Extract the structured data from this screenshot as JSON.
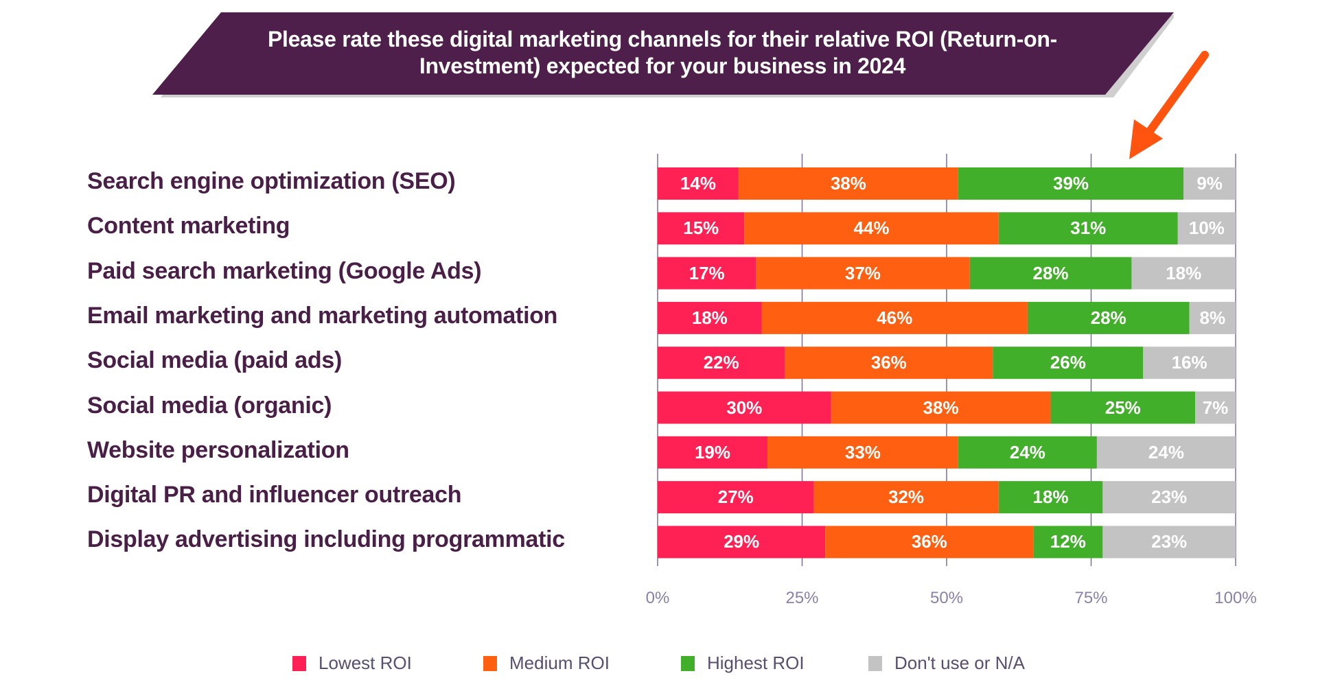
{
  "chart_data": {
    "type": "bar",
    "orientation": "horizontal",
    "stacked": true,
    "title": "Please rate these digital marketing channels for their relative ROI (Return-on-Investment) expected for your business in 2024",
    "title_lines": [
      "Please rate these digital marketing channels for their relative ROI (Return-on-",
      "Investment) expected for your business in 2024"
    ],
    "categories": [
      "Search engine optimization (SEO)",
      "Content marketing",
      "Paid search marketing (Google Ads)",
      "Email marketing and marketing automation",
      "Social media (paid ads)",
      "Social media (organic)",
      "Website personalization",
      "Digital PR and influencer outreach",
      "Display advertising including programmatic"
    ],
    "series": [
      {
        "name": "Lowest ROI",
        "color": "#ff2153",
        "values": [
          14,
          15,
          17,
          18,
          22,
          30,
          19,
          27,
          29
        ]
      },
      {
        "name": "Medium ROI",
        "color": "#ff5f10",
        "values": [
          38,
          44,
          37,
          46,
          36,
          38,
          33,
          32,
          36
        ]
      },
      {
        "name": "Highest ROI",
        "color": "#42af2b",
        "values": [
          39,
          31,
          28,
          28,
          26,
          25,
          24,
          18,
          12
        ]
      },
      {
        "name": "Don't use or N/A",
        "color": "#c3c3c3",
        "values": [
          9,
          10,
          18,
          8,
          16,
          7,
          24,
          23,
          23
        ]
      }
    ],
    "xlim": [
      0,
      100
    ],
    "x_ticks": [
      "0%",
      "25%",
      "50%",
      "75%",
      "100%"
    ],
    "grid": true,
    "legend": "bottom",
    "xlabel": "",
    "ylabel": ""
  },
  "colors": {
    "banner": "#4e1f4b",
    "arrow": "#ff5410",
    "category_text": "#4a1f47",
    "grid": "#7d6f99"
  }
}
